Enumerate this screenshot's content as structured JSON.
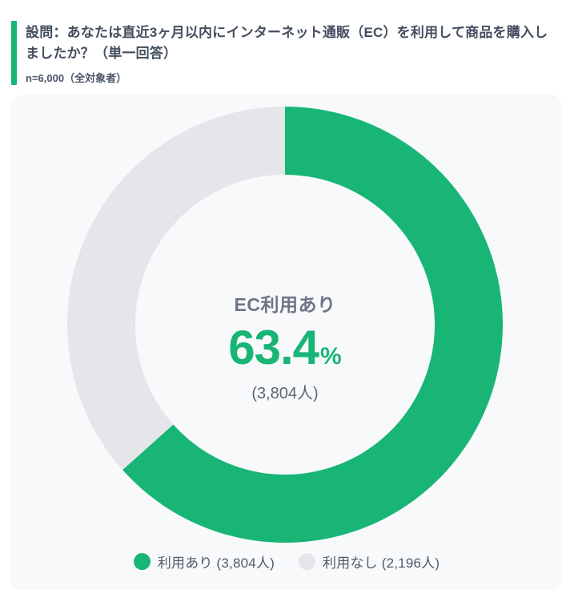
{
  "header": {
    "question": "設問：あなたは直近3ヶ月以内にインターネット通販（EC）を利用して商品を購入しましたか？（単一回答）",
    "sample_size": "n=6,000（全対象者）"
  },
  "colors": {
    "accent_green": "#18b577",
    "inactive_gray": "#e4e6e9",
    "card_background": "#f8f9fb"
  },
  "chart_data": {
    "type": "pie",
    "subtype": "donut",
    "title": "EC利用あり 63.4%",
    "labels": [
      "利用あり",
      "利用なし"
    ],
    "values": [
      3804,
      2196
    ],
    "percentages": [
      63.4,
      36.6
    ],
    "total": 6000,
    "colors": [
      "#18b577",
      "#e4e6e9"
    ],
    "start_angle_deg": 0,
    "direction": "clockwise",
    "legend_position": "bottom",
    "center": {
      "label": "EC利用あり",
      "value": "63.4",
      "unit": "%",
      "count": "(3,804人)"
    },
    "legend": [
      {
        "label": "利用あり (3,804人)",
        "color": "#18b577"
      },
      {
        "label": "利用なし (2,196人)",
        "color": "#e4e6e9"
      }
    ]
  }
}
